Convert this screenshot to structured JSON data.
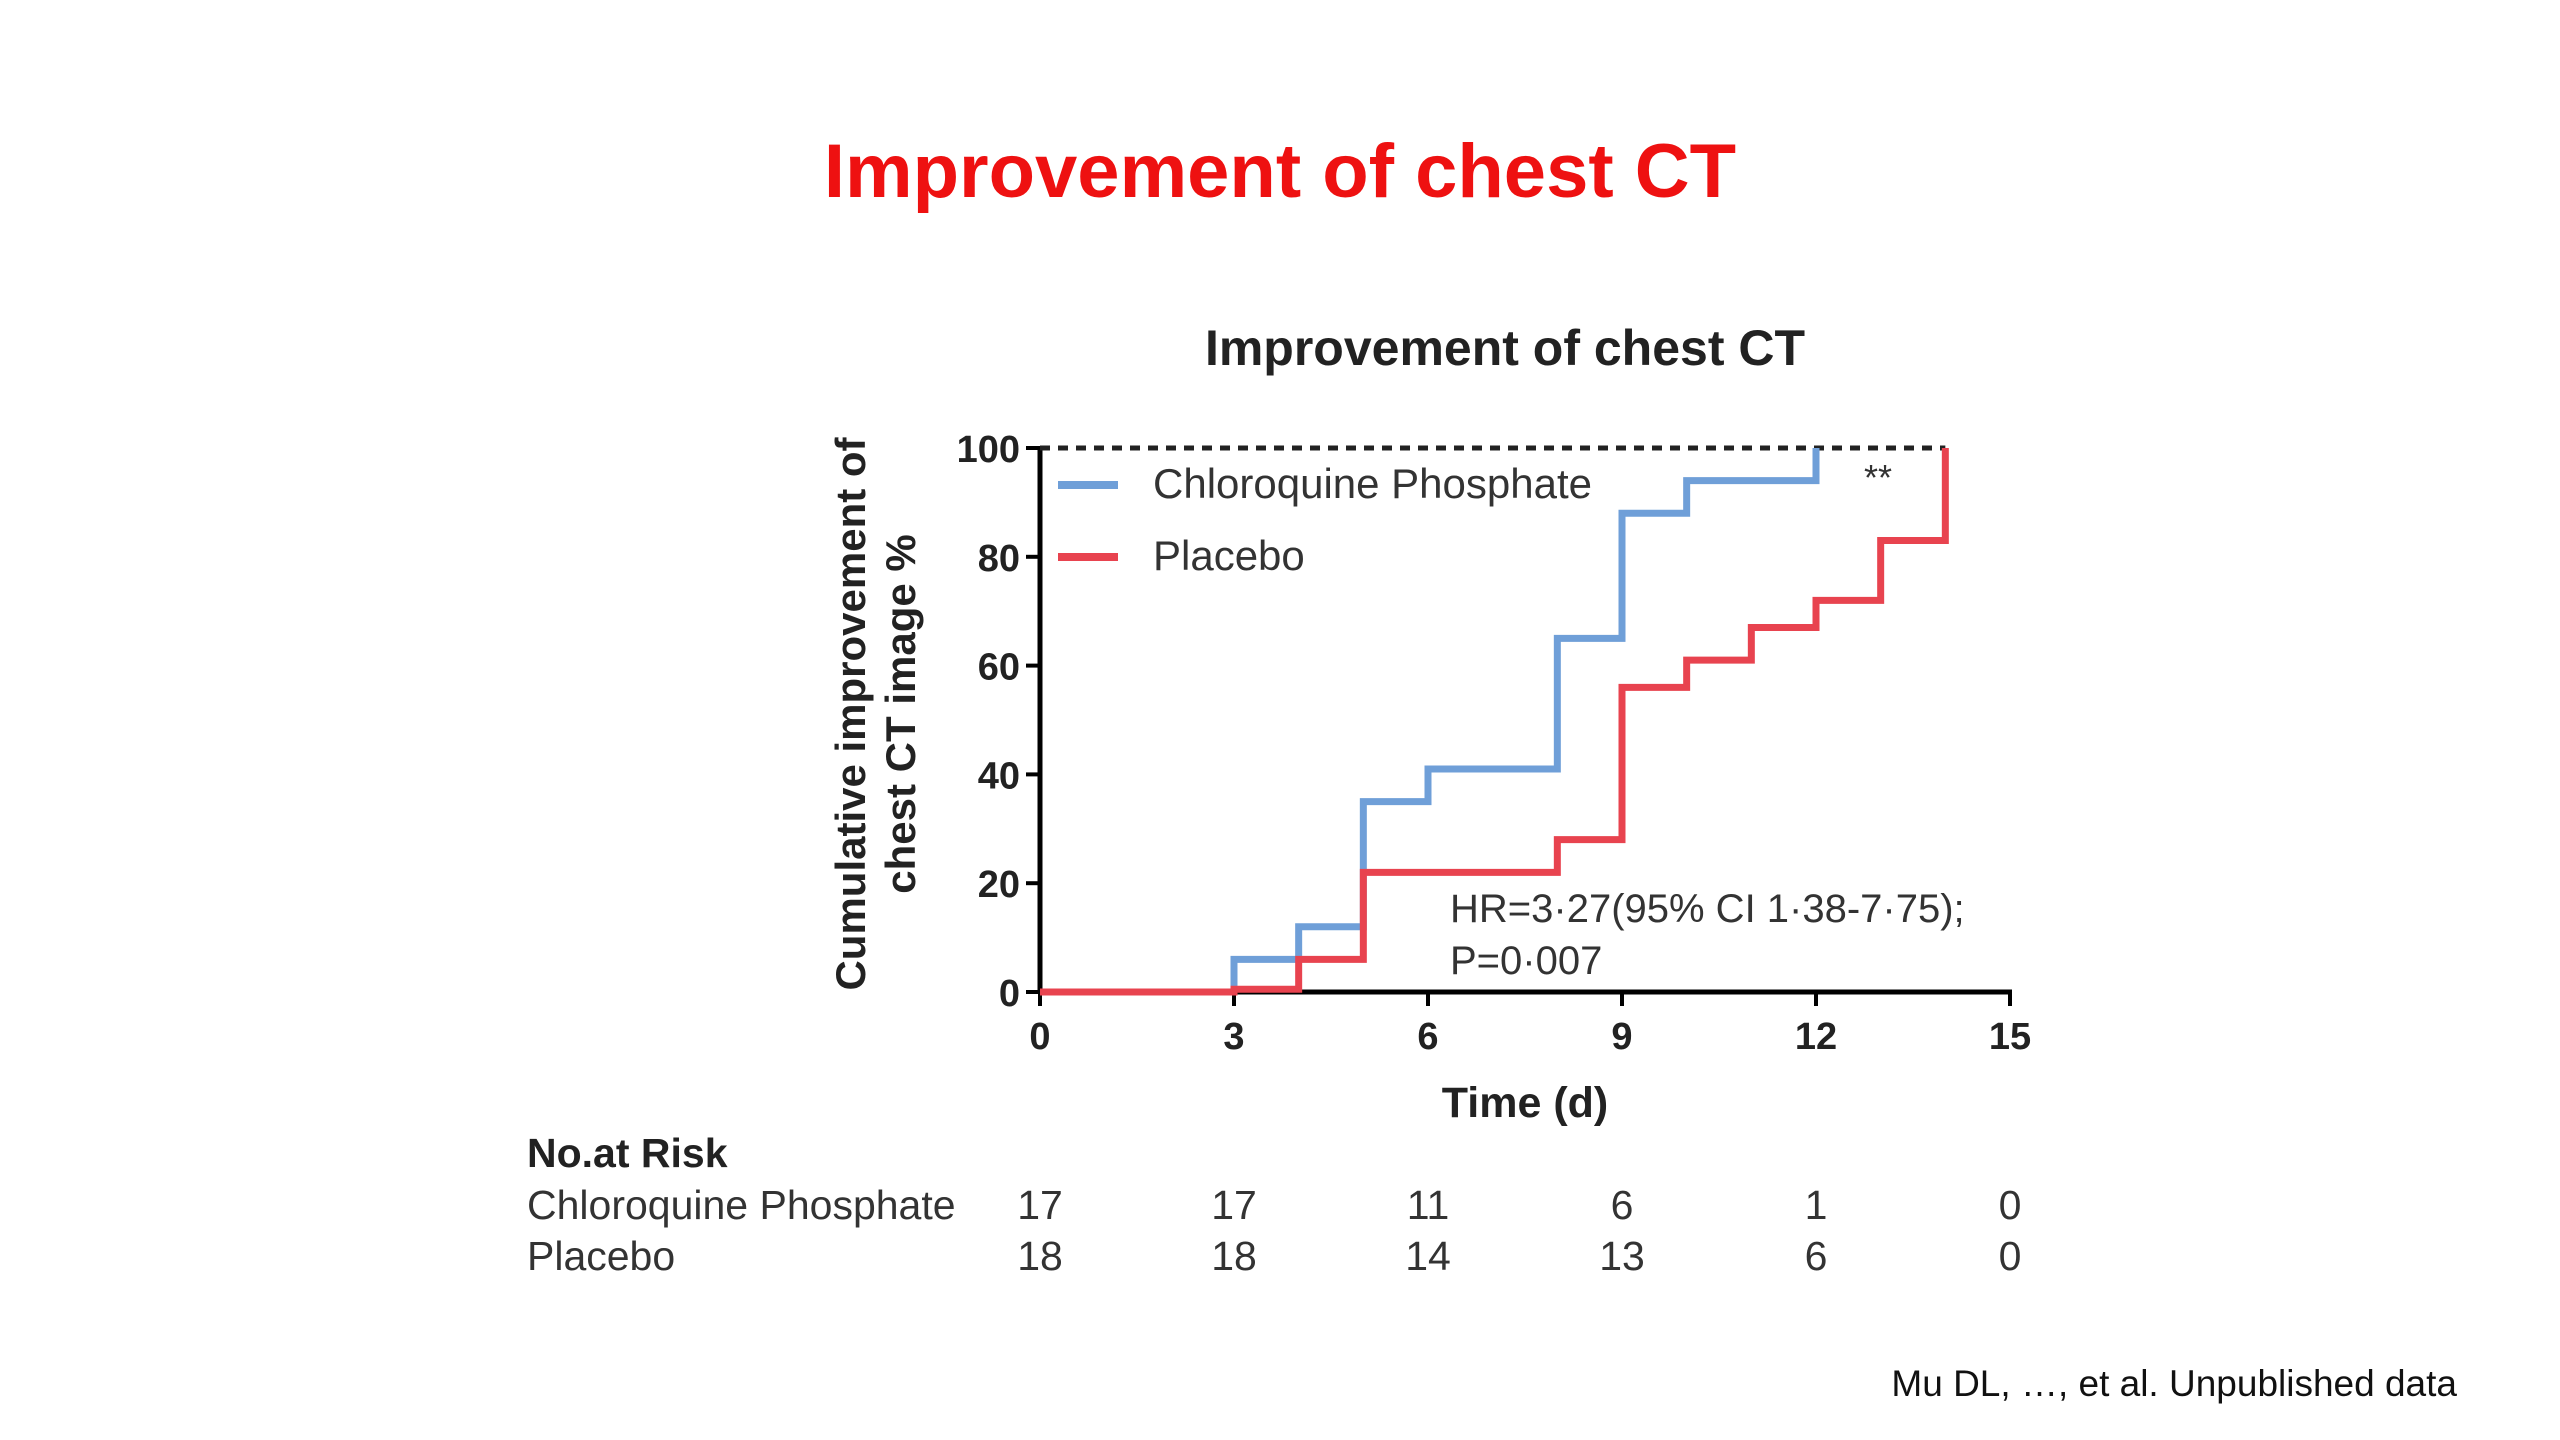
{
  "slide": {
    "title": "Improvement of chest CT",
    "citation": "Mu DL, …, et al. Unpublished data"
  },
  "chart_data": {
    "type": "line",
    "subtype": "kaplan-meier-step",
    "title": "Improvement of chest CT",
    "xlabel": "Time (d)",
    "ylabel_lines": [
      "Cumulative improvement of",
      "chest CT image %"
    ],
    "xlim": [
      0,
      15
    ],
    "ylim": [
      0,
      100
    ],
    "xticks": [
      0,
      3,
      6,
      9,
      12,
      15
    ],
    "yticks": [
      0,
      20,
      40,
      60,
      80,
      100
    ],
    "reference_line": {
      "y": 100,
      "style": "dashed",
      "color": "#222222"
    },
    "legend_position": "top-left",
    "series": [
      {
        "name": "Chloroquine Phosphate",
        "color": "#6f9fd8",
        "steps": [
          [
            0,
            0
          ],
          [
            3,
            6
          ],
          [
            4,
            12
          ],
          [
            5,
            35
          ],
          [
            6,
            41
          ],
          [
            8,
            65
          ],
          [
            9,
            88
          ],
          [
            10,
            94
          ],
          [
            12,
            100
          ]
        ]
      },
      {
        "name": "Placebo",
        "color": "#e8434f",
        "steps": [
          [
            0,
            0
          ],
          [
            3,
            0.5
          ],
          [
            4,
            6
          ],
          [
            5,
            22
          ],
          [
            8,
            28
          ],
          [
            9,
            56
          ],
          [
            10,
            61
          ],
          [
            11,
            67
          ],
          [
            12,
            72
          ],
          [
            13,
            83
          ],
          [
            14,
            100
          ]
        ]
      }
    ],
    "annotations": {
      "significance": "**",
      "hr_line1": "HR=3·27(95% CI 1·38-7·75);",
      "hr_line2": "P=0·007"
    },
    "risk_table": {
      "header": "No.at Risk",
      "time_points": [
        0,
        3,
        6,
        9,
        12,
        15
      ],
      "rows": [
        {
          "label": "Chloroquine Phosphate",
          "values": [
            "17",
            "17",
            "11",
            "6",
            "1",
            "0"
          ]
        },
        {
          "label": "Placebo",
          "values": [
            "18",
            "18",
            "14",
            "13",
            "6",
            "0"
          ]
        }
      ]
    }
  }
}
